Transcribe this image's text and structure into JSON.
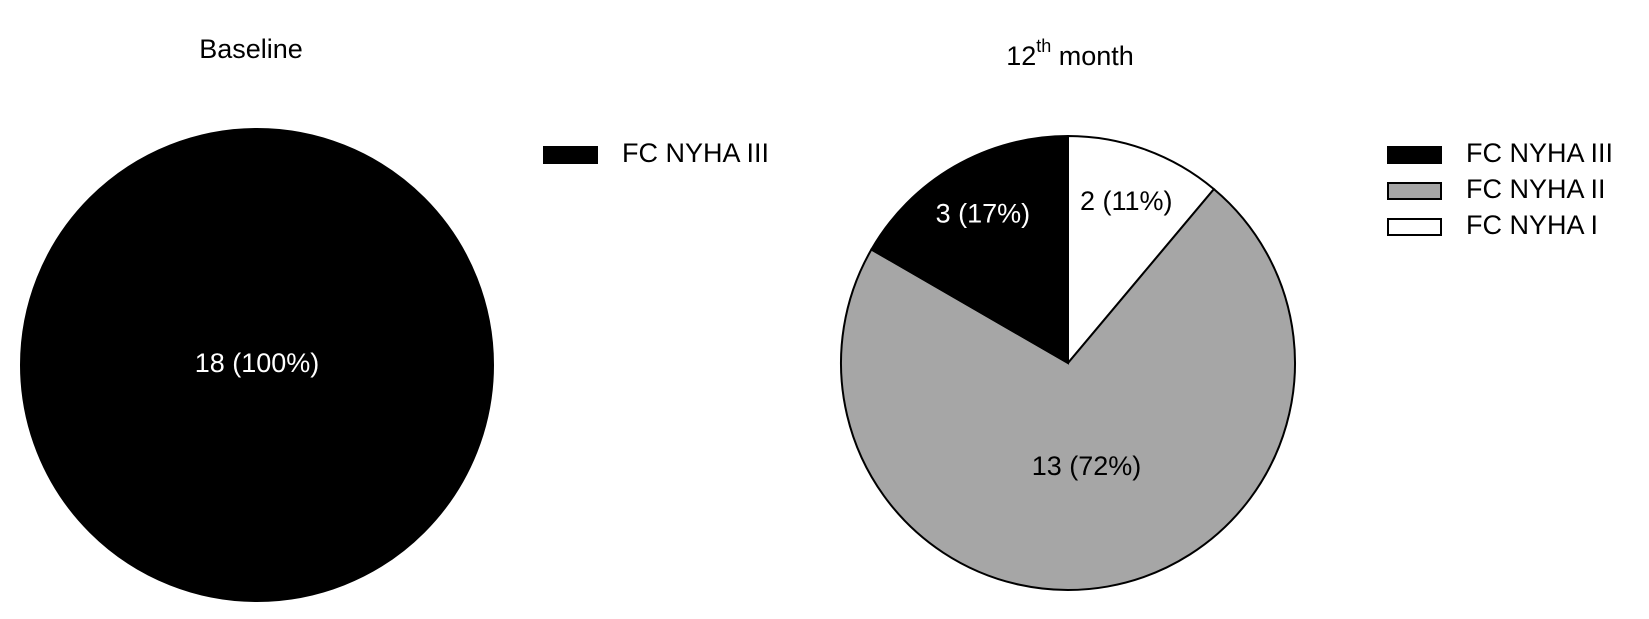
{
  "chart_data": [
    {
      "type": "pie",
      "title": "Baseline",
      "categories": [
        "FC NYHA III"
      ],
      "values": [
        18
      ],
      "value_labels": [
        "18 (100%)"
      ],
      "colors": [
        "#000000"
      ],
      "legend": "right"
    },
    {
      "type": "pie",
      "title": "12th month",
      "categories": [
        "FC NYHA III",
        "FC NYHA II",
        "FC NYHA I"
      ],
      "values": [
        3,
        13,
        2
      ],
      "value_labels": [
        "3 (17%)",
        "13 (72%)",
        "2 (11%)"
      ],
      "colors": [
        "#000000",
        "#a6a6a6",
        "#ffffff"
      ],
      "legend": "right"
    }
  ]
}
